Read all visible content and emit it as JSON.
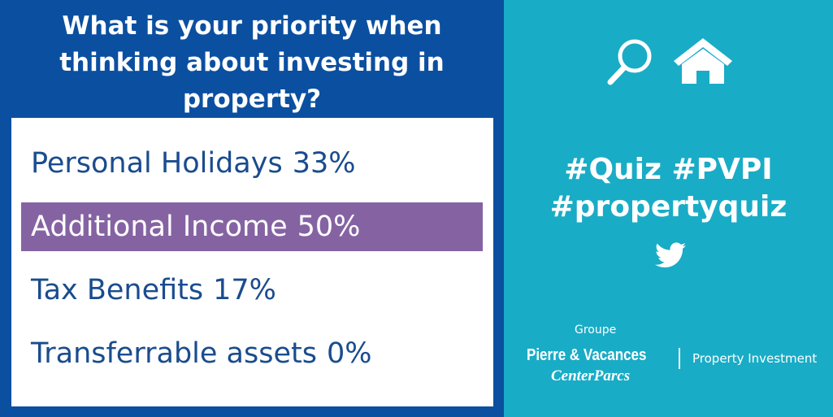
{
  "header": {
    "title": "What is your priority when thinking about investing in property?"
  },
  "options": [
    {
      "label": "Personal Holidays",
      "percent": "33%",
      "highlighted": false
    },
    {
      "label": "Additional Income",
      "percent": "50%",
      "highlighted": true
    },
    {
      "label": "Tax Benefits",
      "percent": "17%",
      "highlighted": false
    },
    {
      "label": "Transferrable assets",
      "percent": "0%",
      "highlighted": false
    }
  ],
  "hashtags": [
    "#Quiz #PVPI",
    "#propertyquiz"
  ],
  "logo": {
    "group": "Groupe",
    "brand": "Pierre & Vacances",
    "sub_brand": "CenterParcs",
    "division": "Property Investment"
  }
}
